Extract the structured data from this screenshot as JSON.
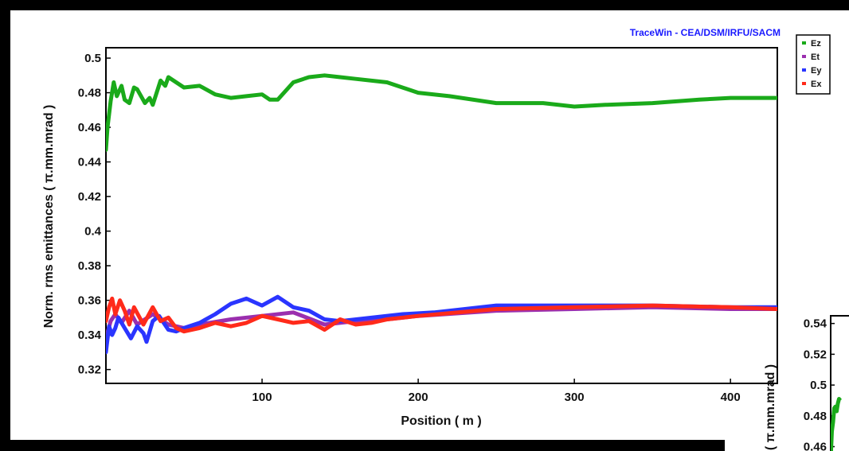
{
  "credit": "TraceWin - CEA/DSM/IRFU/SACM",
  "chart_data": [
    {
      "type": "line",
      "title": "",
      "xlabel": "Position ( m )",
      "ylabel": "Norm. rms emittances ( π.mm.mrad )",
      "xlim": [
        0,
        430
      ],
      "ylim": [
        0.312,
        0.506
      ],
      "xticks": [
        100,
        200,
        300,
        400
      ],
      "xtick_labels": [
        "100",
        "200",
        "300",
        "400"
      ],
      "yticks": [
        0.32,
        0.34,
        0.36,
        0.38,
        0.4,
        0.42,
        0.44,
        0.46,
        0.48,
        0.5
      ],
      "ytick_labels": [
        "0.32",
        "0.34",
        "0.36",
        "0.38",
        "0.4",
        "0.42",
        "0.44",
        "0.46",
        "0.48",
        "0.5"
      ],
      "grid": false,
      "legend_position": "right",
      "series": [
        {
          "name": "Ez",
          "color": "#1aaa1a",
          "x": [
            0,
            1,
            3,
            5,
            7,
            10,
            12,
            15,
            18,
            20,
            25,
            28,
            30,
            35,
            38,
            40,
            45,
            50,
            60,
            70,
            80,
            90,
            100,
            105,
            110,
            120,
            130,
            140,
            150,
            160,
            180,
            200,
            220,
            250,
            280,
            300,
            320,
            350,
            380,
            400,
            430
          ],
          "y": [
            0.447,
            0.46,
            0.475,
            0.486,
            0.478,
            0.484,
            0.476,
            0.474,
            0.483,
            0.482,
            0.474,
            0.477,
            0.473,
            0.487,
            0.484,
            0.489,
            0.486,
            0.483,
            0.484,
            0.479,
            0.477,
            0.478,
            0.479,
            0.476,
            0.476,
            0.486,
            0.489,
            0.49,
            0.489,
            0.488,
            0.486,
            0.48,
            0.478,
            0.474,
            0.474,
            0.472,
            0.473,
            0.474,
            0.476,
            0.477,
            0.477
          ]
        },
        {
          "name": "Et",
          "color": "#9b2fae",
          "x": [
            0,
            3,
            6,
            10,
            15,
            20,
            25,
            30,
            40,
            50,
            60,
            80,
            100,
            120,
            140,
            160,
            180,
            200,
            250,
            300,
            350,
            400,
            430
          ],
          "y": [
            0.338,
            0.348,
            0.352,
            0.347,
            0.354,
            0.346,
            0.349,
            0.352,
            0.346,
            0.344,
            0.346,
            0.349,
            0.351,
            0.353,
            0.346,
            0.348,
            0.349,
            0.351,
            0.354,
            0.355,
            0.356,
            0.355,
            0.355
          ]
        },
        {
          "name": "Ey",
          "color": "#2a35ff",
          "x": [
            0,
            2,
            4,
            6,
            8,
            12,
            16,
            20,
            24,
            26,
            30,
            34,
            40,
            45,
            50,
            60,
            70,
            80,
            90,
            100,
            110,
            120,
            130,
            140,
            150,
            170,
            190,
            210,
            230,
            250,
            300,
            350,
            400,
            430
          ],
          "y": [
            0.33,
            0.345,
            0.34,
            0.344,
            0.35,
            0.344,
            0.338,
            0.345,
            0.341,
            0.336,
            0.348,
            0.351,
            0.343,
            0.342,
            0.344,
            0.347,
            0.352,
            0.358,
            0.361,
            0.357,
            0.362,
            0.356,
            0.354,
            0.349,
            0.348,
            0.35,
            0.352,
            0.353,
            0.355,
            0.357,
            0.357,
            0.357,
            0.356,
            0.356
          ]
        },
        {
          "name": "Ex",
          "color": "#ff2a1a",
          "x": [
            0,
            2,
            4,
            6,
            9,
            12,
            15,
            18,
            21,
            24,
            27,
            30,
            35,
            40,
            45,
            50,
            60,
            70,
            80,
            90,
            100,
            110,
            120,
            130,
            140,
            150,
            160,
            170,
            180,
            200,
            250,
            300,
            350,
            400,
            430
          ],
          "y": [
            0.348,
            0.356,
            0.361,
            0.352,
            0.36,
            0.354,
            0.346,
            0.356,
            0.351,
            0.346,
            0.351,
            0.356,
            0.348,
            0.35,
            0.344,
            0.342,
            0.344,
            0.347,
            0.345,
            0.347,
            0.351,
            0.349,
            0.347,
            0.348,
            0.343,
            0.349,
            0.346,
            0.347,
            0.349,
            0.351,
            0.355,
            0.356,
            0.357,
            0.356,
            0.355
          ]
        }
      ]
    },
    {
      "type": "line",
      "title": "",
      "xlabel": "",
      "ylabel": "( π.mm.mrad )",
      "ylim": [
        0.452,
        0.545
      ],
      "xlim": [
        0,
        10
      ],
      "yticks": [
        0.46,
        0.48,
        0.5,
        0.52,
        0.54
      ],
      "ytick_labels": [
        "0.46",
        "0.48",
        "0.5",
        "0.52",
        "0.54"
      ],
      "grid": false,
      "series": [
        {
          "name": "",
          "color": "#1aaa1a",
          "x": [
            0,
            0.5,
            1,
            1.5,
            2,
            2.5,
            3,
            3.5,
            4
          ],
          "y": [
            0.452,
            0.47,
            0.476,
            0.485,
            0.486,
            0.483,
            0.488,
            0.491,
            0.49
          ]
        }
      ]
    }
  ]
}
